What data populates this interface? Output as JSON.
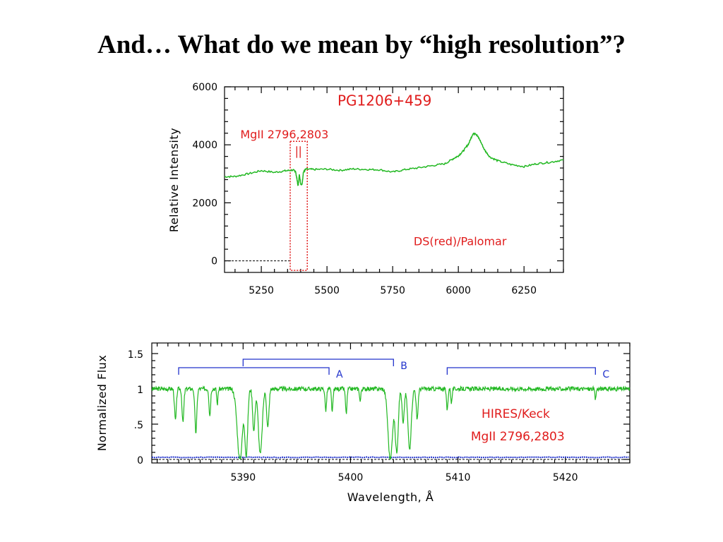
{
  "slide": {
    "title": "And… What do we mean by “high resolution”?"
  },
  "colors": {
    "spectrum": "#22b822",
    "annotation": "#e01c1c",
    "bracket": "#2233cc",
    "axis": "#000000"
  },
  "chart_data": [
    {
      "type": "line",
      "id": "top",
      "title": "PG1206+459",
      "ylabel": "Relative Intensity",
      "xlabel": "",
      "xlim": [
        5110,
        6400
      ],
      "ylim": [
        -400,
        6000
      ],
      "y_ticks": [
        0,
        2000,
        4000,
        6000
      ],
      "x_ticks": [
        5250,
        5500,
        5750,
        6000,
        6250
      ],
      "grid": false,
      "annotations": [
        {
          "text": "MgII 2796,2803",
          "x": 5170,
          "y": 4220
        },
        {
          "text": "PG1206+459",
          "x": 5540,
          "y": 5350
        },
        {
          "text": "DS(red)/Palomar",
          "x": 5830,
          "y": 540
        }
      ],
      "highlight_box": {
        "x": [
          5360,
          5425
        ],
        "y": [
          -330,
          4120
        ]
      },
      "zero_line": 0,
      "series": [
        {
          "x": [
            5110,
            5150,
            5200,
            5250,
            5300,
            5340,
            5370,
            5380,
            5385,
            5390,
            5395,
            5400,
            5405,
            5410,
            5420,
            5450,
            5500,
            5550,
            5600,
            5650,
            5700,
            5750,
            5800,
            5850,
            5900,
            5950,
            5980,
            6000,
            6020,
            6040,
            6055,
            6065,
            6080,
            6100,
            6120,
            6150,
            6200,
            6250,
            6300,
            6350,
            6400
          ],
          "y": [
            2900,
            2910,
            3000,
            3110,
            3050,
            3100,
            3130,
            3100,
            2850,
            2580,
            2980,
            2650,
            2620,
            3050,
            3160,
            3150,
            3160,
            3120,
            3170,
            3150,
            3140,
            3060,
            3150,
            3210,
            3280,
            3350,
            3520,
            3620,
            3800,
            4050,
            4380,
            4400,
            4200,
            3820,
            3580,
            3450,
            3320,
            3250,
            3350,
            3400,
            3480
          ]
        }
      ]
    },
    {
      "type": "line",
      "id": "bottom",
      "title": "",
      "ylabel": "Normalized Flux",
      "xlabel": "Wavelength, Å",
      "xlim": [
        5381.5,
        5426
      ],
      "ylim": [
        -0.05,
        1.65
      ],
      "y_ticks": [
        0,
        0.5,
        1,
        1.5
      ],
      "y_tick_labels": [
        "0",
        ".5",
        "1",
        "1.5"
      ],
      "x_ticks": [
        5390,
        5400,
        5410,
        5420
      ],
      "grid": false,
      "annotations": [
        {
          "text": "HIRES/Keck",
          "x": 5412.2,
          "y": 0.59
        },
        {
          "text": "MgII 2796,2803",
          "x": 5411.2,
          "y": 0.27
        }
      ],
      "brackets": [
        {
          "label": "A",
          "x1": 5384.0,
          "x2": 5398.0,
          "y": 1.3
        },
        {
          "label": "B",
          "x1": 5390.0,
          "x2": 5404.0,
          "y": 1.42
        },
        {
          "label": "C",
          "x1": 5409.0,
          "x2": 5422.8,
          "y": 1.3
        }
      ],
      "zero_line": 0,
      "error_level": 0.03,
      "absorptions": [
        {
          "x": 5383.7,
          "depth": 0.45,
          "w": 0.12
        },
        {
          "x": 5384.4,
          "depth": 0.48,
          "w": 0.12
        },
        {
          "x": 5385.6,
          "depth": 0.62,
          "w": 0.13
        },
        {
          "x": 5386.9,
          "depth": 0.38,
          "w": 0.1
        },
        {
          "x": 5387.6,
          "depth": 0.22,
          "w": 0.08
        },
        {
          "x": 5389.7,
          "depth": 1.0,
          "w": 0.35
        },
        {
          "x": 5390.3,
          "depth": 0.9,
          "w": 0.18
        },
        {
          "x": 5391.0,
          "depth": 0.6,
          "w": 0.15
        },
        {
          "x": 5391.6,
          "depth": 0.92,
          "w": 0.25
        },
        {
          "x": 5392.3,
          "depth": 0.55,
          "w": 0.15
        },
        {
          "x": 5397.7,
          "depth": 0.3,
          "w": 0.1
        },
        {
          "x": 5398.3,
          "depth": 0.32,
          "w": 0.1
        },
        {
          "x": 5399.6,
          "depth": 0.35,
          "w": 0.1
        },
        {
          "x": 5400.9,
          "depth": 0.18,
          "w": 0.08
        },
        {
          "x": 5403.7,
          "depth": 1.0,
          "w": 0.3
        },
        {
          "x": 5404.3,
          "depth": 0.88,
          "w": 0.2
        },
        {
          "x": 5404.9,
          "depth": 0.5,
          "w": 0.14
        },
        {
          "x": 5405.5,
          "depth": 0.85,
          "w": 0.22
        },
        {
          "x": 5406.2,
          "depth": 0.45,
          "w": 0.12
        },
        {
          "x": 5409.0,
          "depth": 0.3,
          "w": 0.1
        },
        {
          "x": 5409.4,
          "depth": 0.2,
          "w": 0.08
        },
        {
          "x": 5422.8,
          "depth": 0.15,
          "w": 0.08
        }
      ],
      "noise": 0.03
    }
  ]
}
